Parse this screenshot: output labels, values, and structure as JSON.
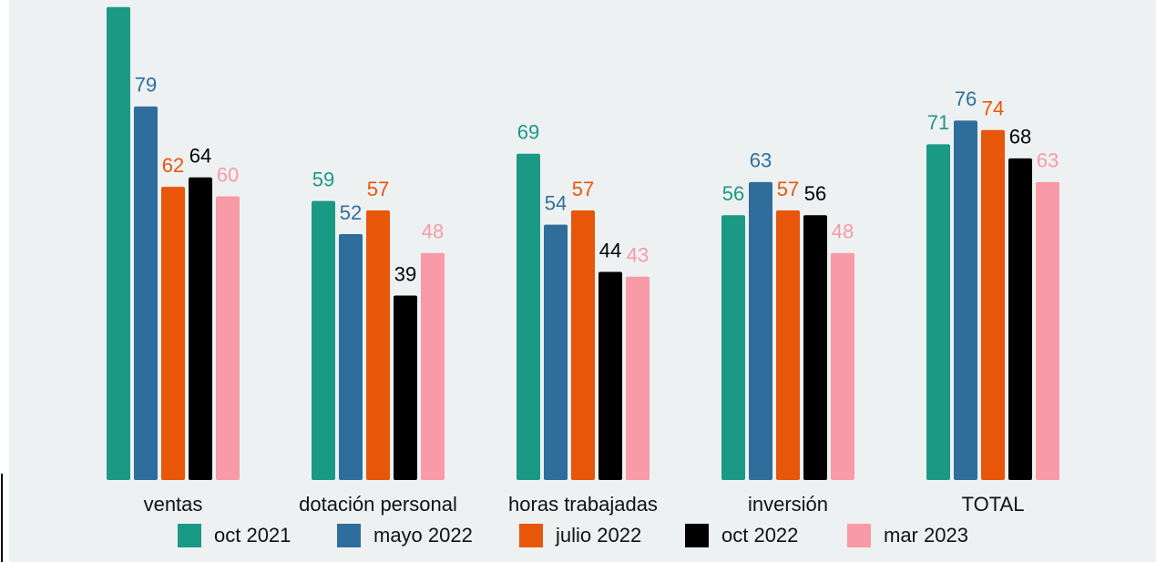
{
  "chart_data": {
    "type": "bar",
    "categories": [
      "ventas",
      "dotación personal",
      "horas trabajadas",
      "inversión",
      "TOTAL"
    ],
    "series": [
      {
        "name": "oct 2021",
        "color": "#1a9985",
        "values": [
          100,
          59,
          69,
          56,
          71
        ]
      },
      {
        "name": "mayo 2022",
        "color": "#2f6e9c",
        "values": [
          79,
          52,
          54,
          63,
          76
        ]
      },
      {
        "name": "julio 2022",
        "color": "#e8560a",
        "values": [
          62,
          57,
          57,
          57,
          74
        ]
      },
      {
        "name": "oct 2022",
        "color": "#000000",
        "values": [
          64,
          39,
          44,
          56,
          68
        ]
      },
      {
        "name": "mar 2023",
        "color": "#f89aa8",
        "values": [
          60,
          48,
          43,
          48,
          63
        ]
      }
    ],
    "ylim": [
      0,
      101.5
    ]
  }
}
